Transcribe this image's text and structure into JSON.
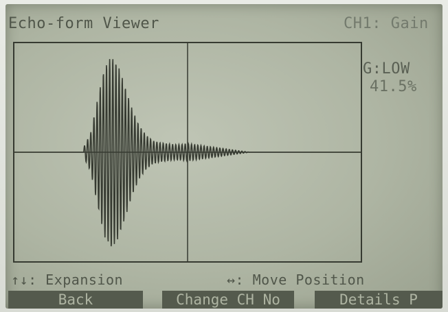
{
  "screen": {
    "title": "Echo-form Viewer",
    "channel_indicator": "CH1: Gain",
    "gain_label": "G:LOW",
    "gain_value": "41.5%"
  },
  "footer": {
    "expansion_hint": "↑↓: Expansion",
    "move_hint": "↔: Move Position"
  },
  "softkeys": {
    "back": "Back",
    "change_ch": "Change CH No",
    "details": "Details P"
  },
  "colors": {
    "lcd_background": "#b4baa9",
    "trace": "#363a31",
    "softkey_background": "#545a4d"
  },
  "chart_data": {
    "type": "line",
    "title": "",
    "xlabel": "",
    "ylabel": "",
    "grid": false,
    "series": [
      {
        "x": [
          0.2,
          0.22,
          0.24,
          0.26,
          0.28,
          0.3,
          0.32,
          0.34,
          0.36,
          0.38,
          0.4,
          0.42,
          0.44,
          0.46,
          0.48,
          0.5,
          0.52,
          0.54,
          0.56,
          0.58,
          0.6,
          0.62,
          0.64,
          0.66,
          0.68,
          0.7
        ],
        "amplitude": [
          0.05,
          0.2,
          0.55,
          0.88,
          1.0,
          0.9,
          0.68,
          0.45,
          0.28,
          0.18,
          0.12,
          0.1,
          0.09,
          0.08,
          0.08,
          0.09,
          0.08,
          0.07,
          0.06,
          0.05,
          0.04,
          0.03,
          0.02,
          0.01,
          0.0,
          0.0
        ]
      }
    ]
  }
}
